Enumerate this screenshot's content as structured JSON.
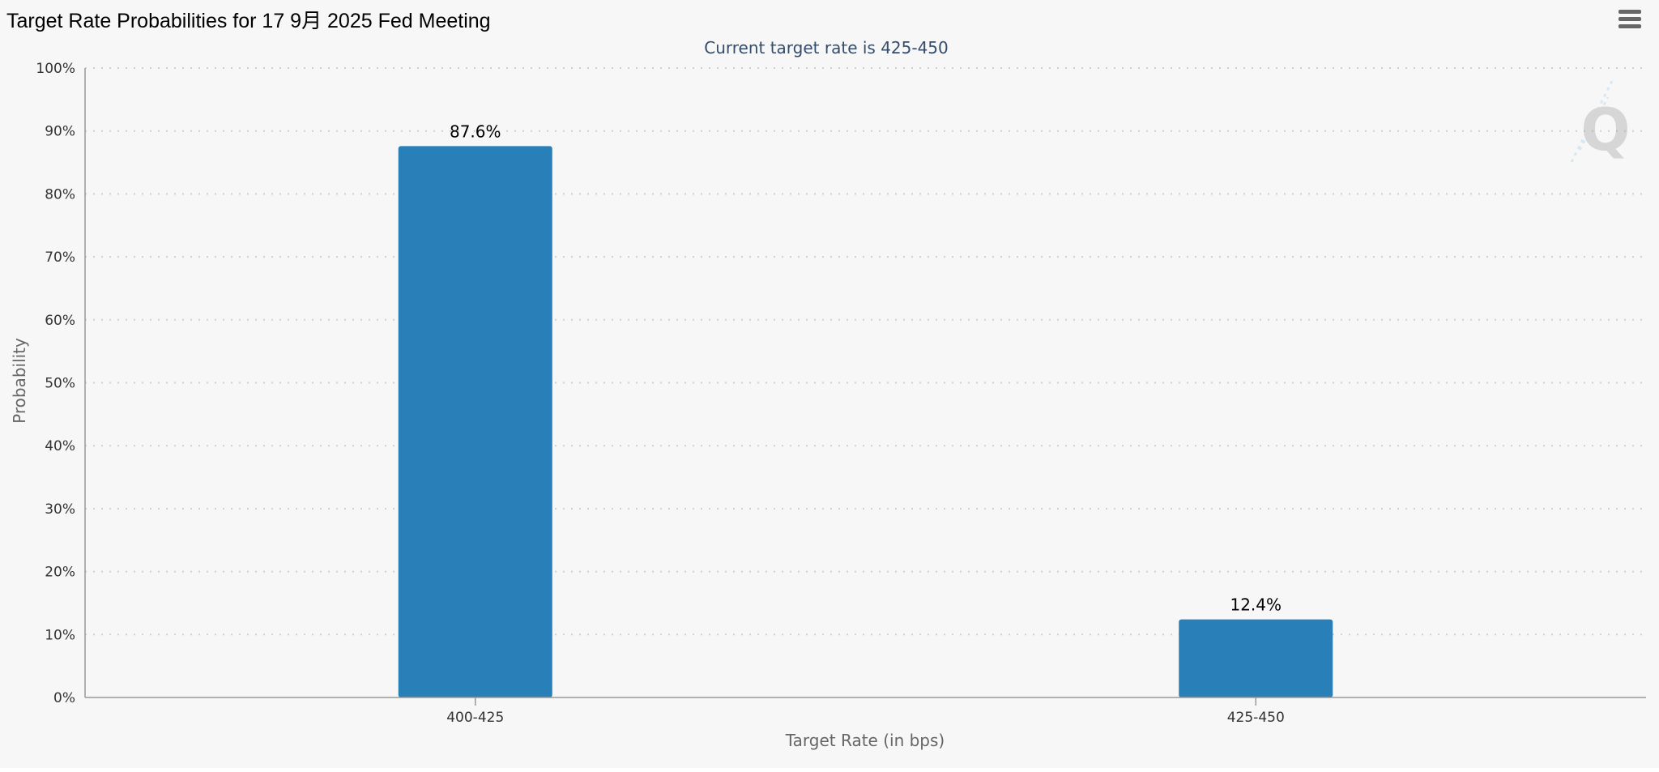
{
  "header": {
    "title": "Target Rate Probabilities for 17 9月 2025 Fed Meeting",
    "menu_icon": "hamburger-menu-icon"
  },
  "watermark": {
    "icon": "cme-q-logo-icon"
  },
  "colors": {
    "bar": "#2980b9",
    "background": "#f7f7f7",
    "subtitle": "#334d6e",
    "grid": "#d0d0d0",
    "axis_text": "#333333",
    "axis_title": "#666666"
  },
  "chart_data": {
    "type": "bar",
    "subtitle": "Current target rate is 425-450",
    "categories": [
      "400-425",
      "425-450"
    ],
    "values": [
      87.6,
      12.4
    ],
    "data_labels": [
      "87.6%",
      "12.4%"
    ],
    "xlabel": "Target Rate (in bps)",
    "ylabel": "Probability",
    "ylim": [
      0,
      100
    ],
    "yticks": [
      "0%",
      "10%",
      "20%",
      "30%",
      "40%",
      "50%",
      "60%",
      "70%",
      "80%",
      "90%",
      "100%"
    ],
    "grid": true,
    "legend": "none"
  }
}
